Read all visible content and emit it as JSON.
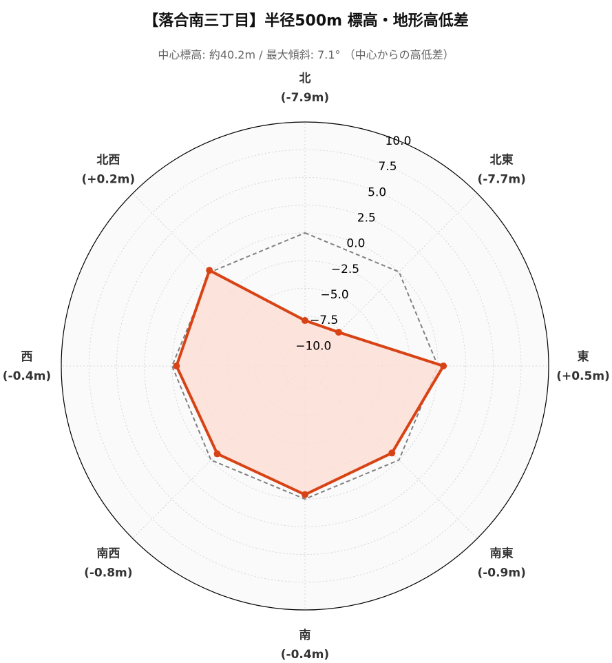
{
  "chart_data": {
    "type": "radar",
    "title": "【落合南三丁目】半径500m 標高・地形高低差",
    "subtitle": "中心標高: 約40.2m / 最大傾斜: 7.1° （中心からの高低差）",
    "categories": [
      "北",
      "北東",
      "東",
      "南東",
      "南",
      "南西",
      "西",
      "北西"
    ],
    "category_values": [
      "(-7.9m)",
      "(-7.7m)",
      "(+0.5m)",
      "(-0.9m)",
      "(-0.4m)",
      "(-0.8m)",
      "(-0.4m)",
      "(+0.2m)"
    ],
    "series": [
      {
        "values": [
          -7.9,
          -7.7,
          0.5,
          -0.9,
          -0.4,
          -0.8,
          -0.4,
          0.2
        ],
        "color": "#d84315",
        "fill": "#fcded6",
        "style": "solid"
      },
      {
        "values": [
          0,
          0,
          0,
          0,
          0,
          0,
          0,
          0
        ],
        "color": "#808080",
        "style": "dashed"
      }
    ],
    "rlim": [
      -12,
      10
    ],
    "rticks": [
      "−10.0",
      "−7.5",
      "−5.0",
      "−2.5",
      "0.0",
      "2.5",
      "5.0",
      "7.5",
      "10.0"
    ],
    "rtick_values": [
      -10,
      -7.5,
      -5,
      -2.5,
      0,
      2.5,
      5,
      7.5,
      10
    ],
    "grid": true,
    "background": "#fafafa"
  }
}
